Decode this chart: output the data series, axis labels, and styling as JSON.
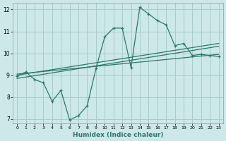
{
  "xlabel": "Humidex (Indice chaleur)",
  "bg_color": "#cce8e8",
  "grid_color": "#aacccc",
  "line_color": "#2a7a6a",
  "xlim": [
    -0.5,
    23.5
  ],
  "ylim": [
    6.8,
    12.3
  ],
  "xticks": [
    0,
    1,
    2,
    3,
    4,
    5,
    6,
    7,
    8,
    9,
    10,
    11,
    12,
    13,
    14,
    15,
    16,
    17,
    18,
    19,
    20,
    21,
    22,
    23
  ],
  "yticks": [
    7,
    8,
    9,
    10,
    11,
    12
  ],
  "series1_x": [
    0,
    1,
    2,
    3,
    4,
    5,
    6,
    7,
    8,
    9,
    10,
    11,
    12,
    13,
    14,
    15,
    16,
    17,
    18,
    19,
    20,
    21,
    22,
    23
  ],
  "series1_y": [
    8.95,
    9.15,
    8.8,
    8.65,
    7.8,
    8.3,
    6.95,
    7.15,
    7.6,
    9.3,
    10.75,
    11.15,
    11.15,
    9.35,
    12.1,
    11.8,
    11.5,
    11.3,
    10.35,
    10.45,
    9.9,
    9.95,
    9.9,
    9.85
  ],
  "series2_x": [
    0,
    23
  ],
  "series2_y": [
    9.0,
    10.45
  ],
  "series3_x": [
    0,
    23
  ],
  "series3_y": [
    8.85,
    10.32
  ],
  "series4_x": [
    0,
    23
  ],
  "series4_y": [
    9.05,
    9.95
  ]
}
